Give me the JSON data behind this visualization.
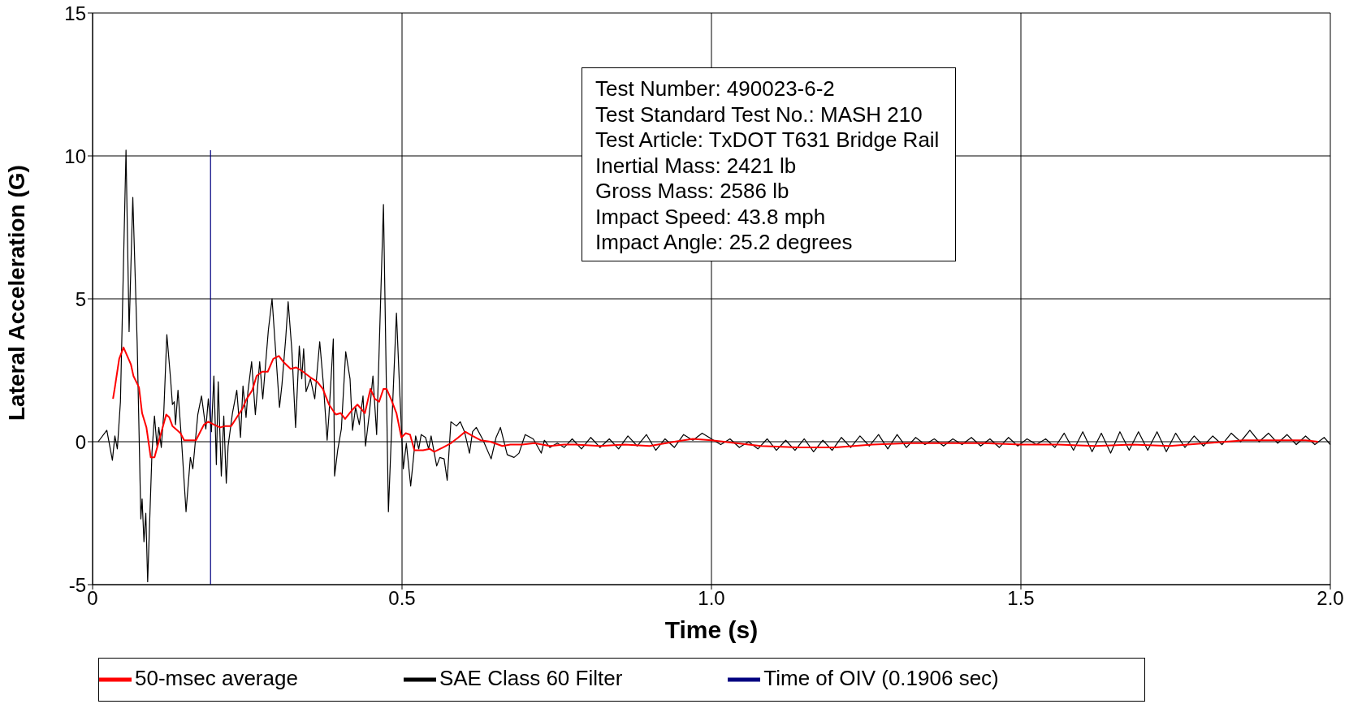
{
  "chart_data": {
    "type": "line",
    "xlabel": "Time (s)",
    "ylabel": "Lateral Acceleration (G)",
    "xlim": [
      0,
      2
    ],
    "xticks": [
      0,
      0.5,
      {
        "value": 1,
        "label": "1.0"
      },
      {
        "value": 1.5,
        "label": "1.5"
      },
      {
        "value": 2,
        "label": "2.0"
      }
    ],
    "ylim": [
      -5,
      15
    ],
    "yticks": [
      -5,
      0,
      5,
      10,
      15
    ],
    "grid": true,
    "legend": "bottom",
    "marker": "none",
    "line_style": "solid",
    "annotations": [
      "Test Number: 490023-6-2",
      "Test Standard Test No.: MASH 210",
      "Test Article: TxDOT T631 Bridge Rail",
      "Inertial Mass: 2421 lb",
      "Gross Mass: 2586 lb",
      "Impact Speed: 43.8 mph",
      "Impact Angle: 25.2 degrees"
    ],
    "series": [
      {
        "name": "Time of OIV (0.1906 sec)",
        "color": "#000080",
        "x": [
          0.1906,
          0.1906
        ],
        "values": [
          -5,
          10.2
        ]
      },
      {
        "name": "SAE Class 60 Filter",
        "color": "#000000",
        "x": [
          0.009,
          0.023,
          0.032,
          0.036,
          0.04,
          0.045,
          0.054,
          0.059,
          0.065,
          0.072,
          0.078,
          0.08,
          0.083,
          0.086,
          0.089,
          0.096,
          0.1,
          0.104,
          0.107,
          0.111,
          0.115,
          0.12,
          0.126,
          0.129,
          0.132,
          0.134,
          0.138,
          0.144,
          0.151,
          0.158,
          0.162,
          0.17,
          0.176,
          0.183,
          0.187,
          0.192,
          0.196,
          0.2,
          0.203,
          0.208,
          0.212,
          0.216,
          0.219,
          0.226,
          0.233,
          0.239,
          0.243,
          0.248,
          0.251,
          0.257,
          0.263,
          0.27,
          0.275,
          0.284,
          0.29,
          0.302,
          0.306,
          0.312,
          0.316,
          0.322,
          0.328,
          0.334,
          0.338,
          0.341,
          0.345,
          0.352,
          0.359,
          0.367,
          0.373,
          0.379,
          0.382,
          0.389,
          0.391,
          0.396,
          0.402,
          0.409,
          0.416,
          0.42,
          0.425,
          0.431,
          0.437,
          0.441,
          0.447,
          0.453,
          0.459,
          0.47,
          0.478,
          0.483,
          0.491,
          0.496,
          0.502,
          0.507,
          0.514,
          0.522,
          0.527,
          0.531,
          0.538,
          0.543,
          0.547,
          0.556,
          0.561,
          0.568,
          0.573,
          0.579,
          0.588,
          0.594,
          0.601,
          0.609,
          0.614,
          0.62,
          0.63,
          0.644,
          0.652,
          0.659,
          0.67,
          0.681,
          0.689,
          0.699,
          0.712,
          0.725,
          0.73,
          0.739,
          0.751,
          0.762,
          0.775,
          0.79,
          0.805,
          0.82,
          0.835,
          0.85,
          0.865,
          0.88,
          0.895,
          0.91,
          0.925,
          0.94,
          0.955,
          0.97,
          0.985,
          1.0,
          1.015,
          1.03,
          1.045,
          1.06,
          1.075,
          1.09,
          1.105,
          1.12,
          1.135,
          1.15,
          1.165,
          1.18,
          1.195,
          1.21,
          1.225,
          1.24,
          1.255,
          1.27,
          1.285,
          1.3,
          1.315,
          1.33,
          1.345,
          1.36,
          1.375,
          1.39,
          1.405,
          1.42,
          1.435,
          1.45,
          1.465,
          1.48,
          1.495,
          1.51,
          1.525,
          1.54,
          1.555,
          1.57,
          1.585,
          1.6,
          1.615,
          1.63,
          1.645,
          1.66,
          1.675,
          1.69,
          1.705,
          1.72,
          1.735,
          1.75,
          1.765,
          1.78,
          1.795,
          1.81,
          1.825,
          1.84,
          1.855,
          1.87,
          1.885,
          1.9,
          1.915,
          1.93,
          1.945,
          1.96,
          1.975,
          1.99,
          2.0
        ],
        "values": [
          0,
          0.4,
          -0.65,
          0.2,
          -0.25,
          1.4,
          10.2,
          3.85,
          8.55,
          3.5,
          -2.7,
          -2.0,
          -3.5,
          -2.5,
          -4.9,
          -0.35,
          0.9,
          -0.15,
          0.5,
          -0.2,
          1.0,
          3.75,
          2.2,
          1.3,
          1.4,
          0.6,
          1.8,
          -0.05,
          -2.45,
          -0.55,
          -0.95,
          0.95,
          1.6,
          0.45,
          1.5,
          0.35,
          2.3,
          -0.8,
          2.1,
          -1.2,
          0.9,
          -1.45,
          -0.15,
          1.0,
          1.8,
          0.15,
          1.95,
          0.85,
          1.75,
          2.8,
          0.95,
          2.8,
          1.5,
          3.9,
          5.0,
          1.2,
          2.0,
          3.6,
          4.9,
          3.2,
          0.5,
          3.35,
          2.2,
          3.25,
          1.75,
          2.2,
          1.5,
          3.5,
          2.0,
          0.05,
          0.95,
          3.6,
          -1.2,
          -0.3,
          0.45,
          3.15,
          2.2,
          0.4,
          1.2,
          0.6,
          1.6,
          -0.15,
          0.95,
          2.3,
          0.25,
          8.3,
          -2.45,
          0.35,
          4.5,
          1.9,
          -0.95,
          -0.05,
          -1.55,
          0.2,
          -0.25,
          0.25,
          0.15,
          -0.25,
          0.2,
          -0.85,
          -0.55,
          -0.6,
          -1.35,
          0.7,
          0.55,
          0.7,
          0.35,
          -0.4,
          0.35,
          0.5,
          0.1,
          -0.6,
          0.15,
          0.5,
          -0.45,
          -0.55,
          -0.4,
          0.25,
          0.1,
          -0.4,
          0.05,
          -0.2,
          -0.05,
          -0.2,
          0.1,
          -0.25,
          0.15,
          -0.2,
          0.1,
          -0.25,
          0.2,
          -0.15,
          0.25,
          -0.3,
          0.1,
          -0.2,
          0.25,
          0.05,
          0.3,
          0.1,
          -0.1,
          0.1,
          -0.2,
          0.0,
          -0.25,
          0.1,
          -0.3,
          0.05,
          -0.3,
          0.1,
          -0.35,
          0.05,
          -0.3,
          0.15,
          -0.2,
          0.2,
          -0.15,
          0.25,
          -0.25,
          0.25,
          -0.2,
          0.15,
          -0.1,
          0.1,
          -0.15,
          0.1,
          -0.1,
          0.15,
          -0.15,
          0.1,
          -0.2,
          0.15,
          -0.15,
          0.1,
          -0.1,
          0.1,
          -0.2,
          0.3,
          -0.3,
          0.35,
          -0.35,
          0.3,
          -0.4,
          0.35,
          -0.3,
          0.35,
          -0.3,
          0.35,
          -0.35,
          0.3,
          -0.2,
          0.2,
          -0.15,
          0.2,
          -0.1,
          0.3,
          0.0,
          0.4,
          0.0,
          0.3,
          -0.05,
          0.25,
          -0.1,
          0.2,
          -0.1,
          0.15,
          -0.1
        ]
      },
      {
        "name": "50-msec average",
        "color": "#ff0000",
        "x": [
          0.033,
          0.036,
          0.043,
          0.05,
          0.056,
          0.062,
          0.066,
          0.075,
          0.08,
          0.087,
          0.094,
          0.1,
          0.11,
          0.119,
          0.124,
          0.129,
          0.137,
          0.142,
          0.148,
          0.158,
          0.167,
          0.174,
          0.18,
          0.187,
          0.196,
          0.206,
          0.215,
          0.224,
          0.233,
          0.242,
          0.249,
          0.258,
          0.265,
          0.274,
          0.283,
          0.292,
          0.301,
          0.308,
          0.32,
          0.329,
          0.34,
          0.352,
          0.363,
          0.372,
          0.382,
          0.393,
          0.401,
          0.408,
          0.419,
          0.428,
          0.44,
          0.449,
          0.456,
          0.463,
          0.47,
          0.475,
          0.483,
          0.491,
          0.499,
          0.506,
          0.513,
          0.52,
          0.534,
          0.545,
          0.552,
          0.566,
          0.579,
          0.591,
          0.602,
          0.614,
          0.627,
          0.643,
          0.662,
          0.675,
          0.694,
          0.714,
          0.739,
          0.762,
          0.78,
          0.82,
          0.86,
          0.9,
          0.94,
          0.97,
          1.0,
          1.04,
          1.08,
          1.14,
          1.2,
          1.26,
          1.32,
          1.38,
          1.44,
          1.5,
          1.56,
          1.62,
          1.68,
          1.74,
          1.8,
          1.86,
          1.92,
          1.96,
          1.98
        ],
        "values": [
          1.5,
          1.9,
          2.9,
          3.3,
          3.0,
          2.7,
          2.3,
          1.9,
          1.0,
          0.5,
          -0.55,
          -0.55,
          0.25,
          0.95,
          0.85,
          0.55,
          0.4,
          0.3,
          0.05,
          0.05,
          0.05,
          0.35,
          0.6,
          0.7,
          0.6,
          0.5,
          0.55,
          0.55,
          0.85,
          1.15,
          1.5,
          1.8,
          2.3,
          2.45,
          2.45,
          2.9,
          3.0,
          2.8,
          2.55,
          2.6,
          2.45,
          2.25,
          2.1,
          1.85,
          1.3,
          0.95,
          1.0,
          0.8,
          1.1,
          1.3,
          1.0,
          1.85,
          1.5,
          1.4,
          1.85,
          1.85,
          1.45,
          1.0,
          0.15,
          0.3,
          0.25,
          -0.3,
          -0.3,
          -0.25,
          -0.35,
          -0.2,
          -0.05,
          0.15,
          0.35,
          0.2,
          0.05,
          0.0,
          -0.15,
          -0.1,
          -0.1,
          -0.05,
          -0.15,
          -0.1,
          -0.1,
          -0.15,
          -0.1,
          -0.15,
          0.0,
          0.1,
          0.05,
          -0.05,
          -0.15,
          -0.2,
          -0.2,
          -0.1,
          -0.05,
          -0.05,
          -0.05,
          -0.1,
          -0.1,
          -0.15,
          -0.1,
          -0.15,
          -0.05,
          0.05,
          0.05,
          0.05,
          0.0
        ]
      }
    ]
  }
}
